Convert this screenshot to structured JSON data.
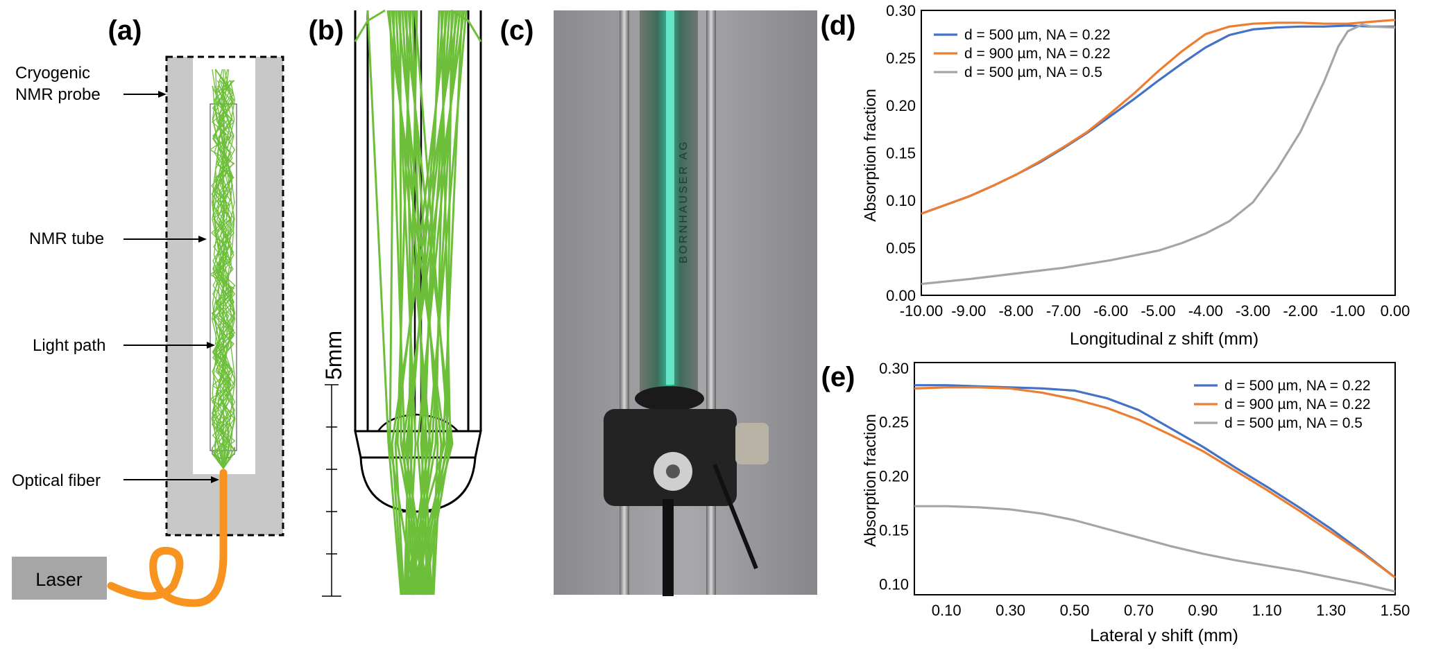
{
  "panels": {
    "a": {
      "label": "(a)",
      "annotations": [
        "Cryogenic",
        "NMR probe",
        "NMR tube",
        "Light path",
        "Optical fiber"
      ],
      "laser_label": "Laser"
    },
    "b": {
      "label": "(b)",
      "scale_label": "5mm"
    },
    "c": {
      "label": "(c)",
      "tube_text": "BORNHAUSER AG"
    },
    "d": {
      "label": "(d)"
    },
    "e": {
      "label": "(e)"
    }
  },
  "colors": {
    "blue": "#4472c4",
    "orange": "#ed7d31",
    "gray": "#a5a5a5",
    "green": "#6dbf3a",
    "fiber": "#f7931e",
    "probe_gray": "#c8c8c8"
  },
  "chart_data": [
    {
      "type": "line",
      "panel": "(d)",
      "xlabel": "Longitudinal z shift (mm)",
      "ylabel": "Absorption fraction",
      "xlim": [
        -10,
        0
      ],
      "ylim": [
        0,
        0.3
      ],
      "x_ticks": [
        "-10.00",
        "-9.00",
        "-8.00",
        "-7.00",
        "-6.00",
        "-5.00",
        "-4.00",
        "-3.00",
        "-2.00",
        "-1.00",
        "0.00"
      ],
      "y_ticks": [
        "0.00",
        "0.05",
        "0.10",
        "0.15",
        "0.20",
        "0.25",
        "0.30"
      ],
      "legend_position": "top-left",
      "series": [
        {
          "name": "d = 500 µm, NA = 0.22",
          "color": "#4472c4",
          "x": [
            -10,
            -9.5,
            -9,
            -8.5,
            -8,
            -7.5,
            -7,
            -6.5,
            -6,
            -5.5,
            -5,
            -4.5,
            -4,
            -3.5,
            -3,
            -2.5,
            -2,
            -1.5,
            -1,
            -0.5,
            0
          ],
          "y": [
            0.086,
            0.095,
            0.104,
            0.115,
            0.127,
            0.14,
            0.155,
            0.171,
            0.189,
            0.207,
            0.226,
            0.244,
            0.261,
            0.274,
            0.28,
            0.282,
            0.283,
            0.283,
            0.284,
            0.283,
            0.283
          ]
        },
        {
          "name": "d = 900 µm, NA = 0.22",
          "color": "#ed7d31",
          "x": [
            -10,
            -9.5,
            -9,
            -8.5,
            -8,
            -7.5,
            -7,
            -6.5,
            -6,
            -5.5,
            -5,
            -4.5,
            -4,
            -3.5,
            -3,
            -2.5,
            -2,
            -1.5,
            -1,
            -0.5,
            0
          ],
          "y": [
            0.086,
            0.095,
            0.104,
            0.115,
            0.127,
            0.141,
            0.156,
            0.172,
            0.192,
            0.213,
            0.236,
            0.257,
            0.275,
            0.283,
            0.286,
            0.287,
            0.287,
            0.286,
            0.286,
            0.288,
            0.29
          ]
        },
        {
          "name": "d = 500 µm, NA = 0.5",
          "color": "#a5a5a5",
          "x": [
            -10,
            -9,
            -8,
            -7,
            -6,
            -5,
            -4.5,
            -4,
            -3.5,
            -3,
            -2.5,
            -2,
            -1.5,
            -1.2,
            -1,
            -0.7,
            -0.5,
            0
          ],
          "y": [
            0.012,
            0.017,
            0.023,
            0.029,
            0.037,
            0.047,
            0.055,
            0.065,
            0.078,
            0.098,
            0.132,
            0.172,
            0.225,
            0.262,
            0.278,
            0.285,
            0.283,
            0.282
          ]
        }
      ]
    },
    {
      "type": "line",
      "panel": "(e)",
      "xlabel": "Lateral y shift (mm)",
      "ylabel": "Absorption fraction",
      "xlim": [
        0,
        1.5
      ],
      "ylim": [
        0.09,
        0.305
      ],
      "x_ticks": [
        "0.10",
        "0.30",
        "0.50",
        "0.70",
        "0.90",
        "1.10",
        "1.30",
        "1.50"
      ],
      "y_ticks": [
        "0.10",
        "0.15",
        "0.20",
        "0.25",
        "0.30"
      ],
      "legend_position": "top-right",
      "series": [
        {
          "name": "d = 500 µm, NA = 0.22",
          "color": "#4472c4",
          "x": [
            0,
            0.1,
            0.2,
            0.3,
            0.4,
            0.5,
            0.6,
            0.7,
            0.8,
            0.9,
            1.0,
            1.1,
            1.2,
            1.3,
            1.4,
            1.5
          ],
          "y": [
            0.284,
            0.284,
            0.283,
            0.282,
            0.281,
            0.279,
            0.272,
            0.261,
            0.244,
            0.227,
            0.208,
            0.19,
            0.171,
            0.151,
            0.129,
            0.106
          ]
        },
        {
          "name": "d = 900 µm, NA = 0.22",
          "color": "#ed7d31",
          "x": [
            0,
            0.1,
            0.2,
            0.3,
            0.4,
            0.5,
            0.6,
            0.7,
            0.8,
            0.9,
            1.0,
            1.1,
            1.2,
            1.3,
            1.4,
            1.5
          ],
          "y": [
            0.281,
            0.282,
            0.282,
            0.281,
            0.277,
            0.271,
            0.263,
            0.252,
            0.238,
            0.223,
            0.205,
            0.187,
            0.168,
            0.148,
            0.128,
            0.106
          ]
        },
        {
          "name": "d = 500 µm, NA = 0.5",
          "color": "#a5a5a5",
          "x": [
            0,
            0.1,
            0.2,
            0.3,
            0.4,
            0.5,
            0.6,
            0.7,
            0.8,
            0.9,
            1.0,
            1.1,
            1.2,
            1.3,
            1.4,
            1.5
          ],
          "y": [
            0.172,
            0.172,
            0.171,
            0.169,
            0.165,
            0.159,
            0.151,
            0.143,
            0.135,
            0.128,
            0.122,
            0.117,
            0.112,
            0.106,
            0.1,
            0.093
          ]
        }
      ]
    }
  ]
}
